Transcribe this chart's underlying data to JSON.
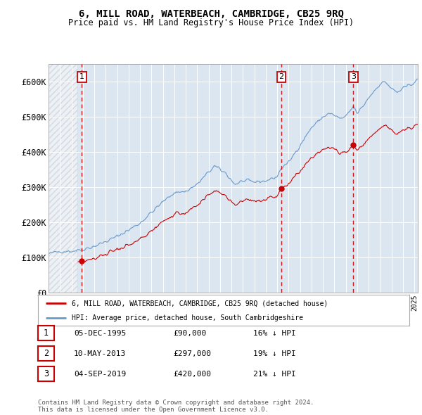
{
  "title": "6, MILL ROAD, WATERBEACH, CAMBRIDGE, CB25 9RQ",
  "subtitle": "Price paid vs. HM Land Registry's House Price Index (HPI)",
  "ylim": [
    0,
    650000
  ],
  "yticks": [
    0,
    100000,
    200000,
    300000,
    400000,
    500000,
    600000
  ],
  "ytick_labels": [
    "£0",
    "£100K",
    "£200K",
    "£300K",
    "£400K",
    "£500K",
    "£600K"
  ],
  "xlim_start": 1993.0,
  "xlim_end": 2025.3,
  "bg_color": "#ffffff",
  "plot_bg_color": "#dce6f0",
  "grid_color": "#ffffff",
  "red_line_color": "#cc0000",
  "blue_line_color": "#6699cc",
  "sale_points": [
    {
      "date": 1995.92,
      "price": 90000,
      "label": "1"
    },
    {
      "date": 2013.36,
      "price": 297000,
      "label": "2"
    },
    {
      "date": 2019.67,
      "price": 420000,
      "label": "3"
    }
  ],
  "vline_color": "#cc0000",
  "legend_label_red": "6, MILL ROAD, WATERBEACH, CAMBRIDGE, CB25 9RQ (detached house)",
  "legend_label_blue": "HPI: Average price, detached house, South Cambridgeshire",
  "table_rows": [
    {
      "num": "1",
      "date": "05-DEC-1995",
      "price": "£90,000",
      "hpi": "16% ↓ HPI"
    },
    {
      "num": "2",
      "date": "10-MAY-2013",
      "price": "£297,000",
      "hpi": "19% ↓ HPI"
    },
    {
      "num": "3",
      "date": "04-SEP-2019",
      "price": "£420,000",
      "hpi": "21% ↓ HPI"
    }
  ],
  "footer": "Contains HM Land Registry data © Crown copyright and database right 2024.\nThis data is licensed under the Open Government Licence v3.0.",
  "hatch_end_year": 1995.5,
  "hatch_start_year": 1993.0
}
